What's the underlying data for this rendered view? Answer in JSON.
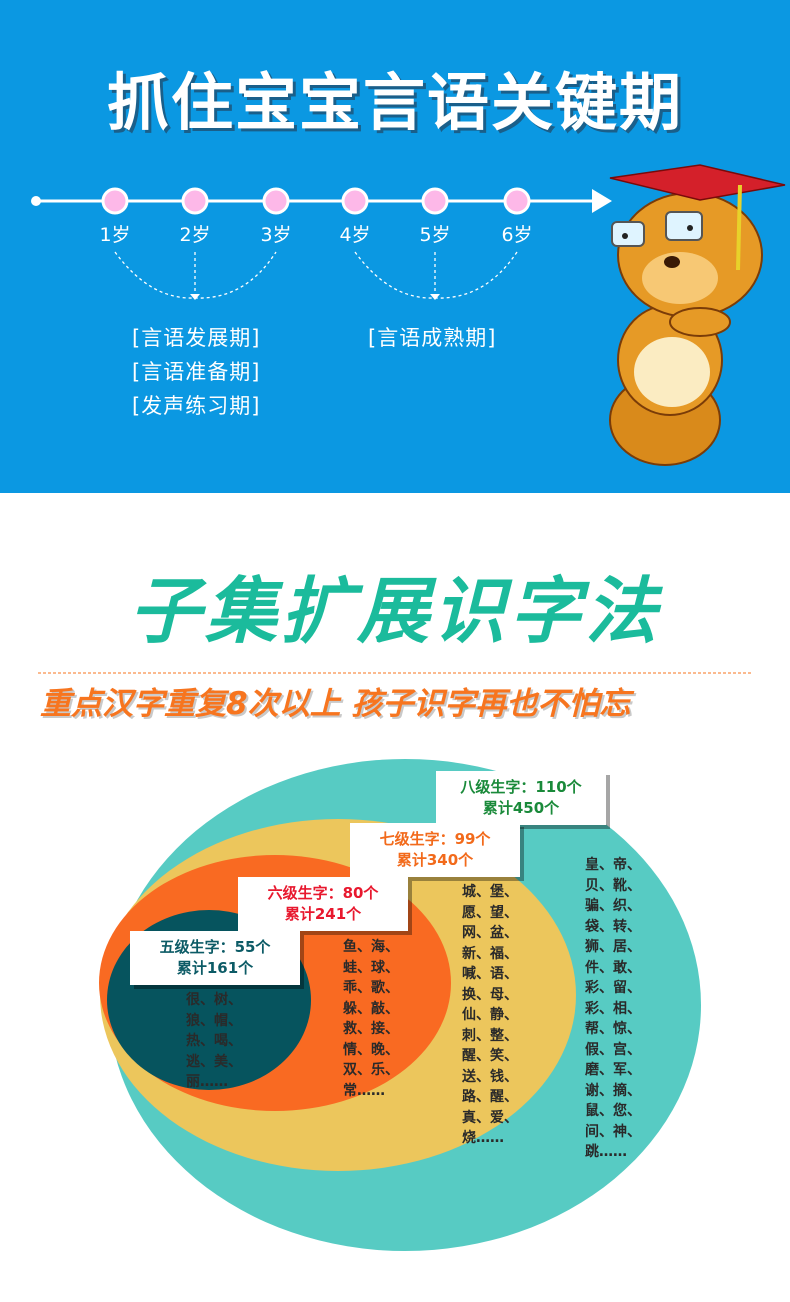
{
  "header": {
    "title": "抓住宝宝言语关键期"
  },
  "timeline": {
    "ages": [
      "1岁",
      "2岁",
      "3岁",
      "4岁",
      "5岁",
      "6岁"
    ],
    "group1": [
      "[言语发展期]",
      "[言语准备期]",
      "[发声练习期]"
    ],
    "group2": [
      "[言语成熟期]"
    ]
  },
  "section2": {
    "title": "子集扩展识字法",
    "subtitle": "重点汉字重复8次以上  孩子识字再也不怕忘"
  },
  "levels": [
    {
      "label": "五级生字：55个",
      "total": "累计161个",
      "color": "#0c5b66",
      "chars": "很、树、\n狼、帽、\n热、喝、\n逃、美、\n丽……"
    },
    {
      "label": "六级生字：80个",
      "total": "累计241个",
      "color": "#e8182e",
      "chars": "鱼、海、\n蛙、球、\n乖、歌、\n躲、敲、\n救、接、\n情、晚、\n双、乐、\n常……"
    },
    {
      "label": "七级生字：99个",
      "total": "累计340个",
      "color": "#f26a1b",
      "chars": "城、堡、\n愿、望、\n网、盆、\n新、福、\n喊、语、\n换、母、\n仙、静、\n刺、整、\n醒、笑、\n送、钱、\n路、醒、\n真、爱、\n烧……"
    },
    {
      "label": "八级生字：110个",
      "total": "累计450个",
      "color": "#1a8a3a",
      "chars": "皇、帝、\n贝、靴、\n骗、织、\n袋、转、\n狮、居、\n件、敢、\n彩、留、\n彩、相、\n帮、惊、\n假、宫、\n磨、军、\n谢、摘、\n鼠、您、\n间、神、\n跳……"
    }
  ],
  "colors": {
    "blue": "#0b98e2",
    "teal": "#57cbc3",
    "yellow": "#ecc65c",
    "orange": "#f96a22",
    "dark": "#06545e"
  }
}
